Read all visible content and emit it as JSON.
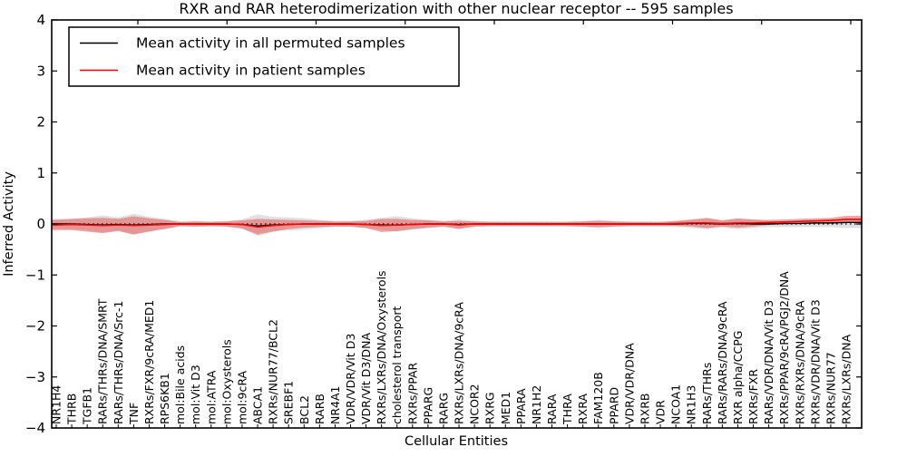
{
  "title": "RXR and RAR heterodimerization with other nuclear receptor -- 595 samples",
  "axes": {
    "xlabel": "Cellular Entities",
    "ylabel": "Inferred Activity",
    "ytick_labels": [
      "4",
      "3",
      "2",
      "1",
      "0",
      "−1",
      "−2",
      "−3",
      "−4"
    ],
    "ytick_values": [
      4,
      3,
      2,
      1,
      0,
      -1,
      -2,
      -3,
      -4
    ]
  },
  "legend": {
    "entries": [
      {
        "label": "Mean activity in all permuted samples",
        "color": "#000000"
      },
      {
        "label": "Mean activity in patient samples",
        "color": "#ff0000"
      }
    ]
  },
  "chart_data": {
    "type": "line",
    "title": "RXR and RAR heterodimerization with other nuclear receptor -- 595 samples",
    "xlabel": "Cellular Entities",
    "ylabel": "Inferred Activity",
    "ylim": [
      -4,
      4
    ],
    "grid": false,
    "legend_position": "upper left",
    "categories": [
      "NR1H4",
      "THRB",
      "TGFB1",
      "RARs/THRs/DNA/SMRT",
      "RARs/THRs/DNA/Src-1",
      "TNF",
      "RXRs/FXR/9cRA/MED1",
      "RPS6KB1",
      "mol:Bile acids",
      "mol:Vit D3",
      "mol:ATRA",
      "mol:Oxysterols",
      "mol:9cRA",
      "ABCA1",
      "RXRs/NUR77/BCL2",
      "SREBF1",
      "BCL2",
      "RARB",
      "NR4A1",
      "VDR/VDR/Vit D3",
      "VDR/Vit D3/DNA",
      "RXRs/LXRs/DNA/Oxysterols",
      "cholesterol transport",
      "RXRs/PPAR",
      "PPARG",
      "RARG",
      "RXRs/LXRs/DNA/9cRA",
      "NCOR2",
      "RXRG",
      "MED1",
      "PPARA",
      "NR1H2",
      "RARA",
      "THRA",
      "RXRA",
      "FAM120B",
      "PPARD",
      "VDR/VDR/DNA",
      "RXRB",
      "VDR",
      "NCOA1",
      "NR1H3",
      "RARs/THRs",
      "RARs/RARs/DNA/9cRA",
      "RXR alpha/CCPG",
      "RXRs/FXR",
      "RARs/VDR/DNA/Vit D3",
      "RXRs/PPAR/9cRA/PGJ2/DNA",
      "RXRs/RXRs/DNA/9cRA",
      "RXRs/VDR/DNA/Vit D3",
      "RXRs/NUR77",
      "RXRs/LXRs/DNA"
    ],
    "series": [
      {
        "name": "Mean activity in all permuted samples",
        "color": "#000000",
        "style": "solid",
        "values": [
          0,
          0,
          -0.01,
          -0.02,
          -0.01,
          -0.02,
          -0.01,
          0,
          0,
          0,
          0,
          0,
          -0.01,
          -0.04,
          -0.02,
          -0.01,
          0,
          0,
          0,
          0,
          -0.01,
          -0.02,
          -0.02,
          -0.01,
          0,
          0,
          -0.01,
          0,
          0,
          0,
          0,
          0,
          0,
          0,
          0,
          0,
          0,
          0,
          0,
          0,
          0,
          0.01,
          0.01,
          0,
          0.01,
          0,
          0,
          0.01,
          0.01,
          0.02,
          0.02,
          0.03
        ]
      },
      {
        "name": "Mean activity in patient samples",
        "color": "#ff0000",
        "style": "solid",
        "values": [
          -0.02,
          -0.01,
          -0.02,
          -0.03,
          -0.02,
          -0.03,
          -0.02,
          -0.01,
          0,
          0,
          0,
          0,
          -0.01,
          -0.06,
          -0.03,
          -0.01,
          0,
          0,
          0,
          0,
          -0.01,
          -0.03,
          -0.02,
          -0.01,
          0,
          0,
          -0.02,
          0,
          0,
          0,
          0,
          0,
          0,
          0,
          0,
          0,
          0,
          0,
          0,
          0,
          0.01,
          0.02,
          0.02,
          0.01,
          0.02,
          0.02,
          0.03,
          0.04,
          0.05,
          0.06,
          0.07,
          0.09
        ]
      }
    ],
    "reference_line": {
      "value": 0,
      "style": "dotted",
      "color": "#000000"
    },
    "bands": [
      {
        "name": "permuted samples activity range",
        "fill": "#828282",
        "opacity": 0.25,
        "upper": [
          0.1,
          0.1,
          0.13,
          0.17,
          0.13,
          0.2,
          0.14,
          0.1,
          0.05,
          0.06,
          0.05,
          0.06,
          0.09,
          0.19,
          0.14,
          0.13,
          0.11,
          0.08,
          0.06,
          0.06,
          0.08,
          0.12,
          0.15,
          0.11,
          0.08,
          0.06,
          0.09,
          0.06,
          0.05,
          0.05,
          0.05,
          0.05,
          0.05,
          0.05,
          0.06,
          0.08,
          0.06,
          0.05,
          0.05,
          0.05,
          0.05,
          0.08,
          0.1,
          0.07,
          0.1,
          0.08,
          0.06,
          0.06,
          0.06,
          0.06,
          0.06,
          0.08
        ],
        "lower": [
          -0.1,
          -0.1,
          -0.13,
          -0.17,
          -0.13,
          -0.2,
          -0.14,
          -0.1,
          -0.05,
          -0.06,
          -0.05,
          -0.06,
          -0.09,
          -0.19,
          -0.14,
          -0.13,
          -0.11,
          -0.08,
          -0.06,
          -0.06,
          -0.08,
          -0.12,
          -0.15,
          -0.11,
          -0.08,
          -0.06,
          -0.09,
          -0.06,
          -0.05,
          -0.05,
          -0.05,
          -0.05,
          -0.05,
          -0.05,
          -0.06,
          -0.08,
          -0.06,
          -0.05,
          -0.05,
          -0.05,
          -0.05,
          -0.08,
          -0.1,
          -0.07,
          -0.1,
          -0.08,
          -0.06,
          -0.06,
          -0.06,
          -0.06,
          -0.06,
          -0.08
        ]
      },
      {
        "name": "patient samples activity range",
        "fill": "#e63c3c",
        "opacity": 0.45,
        "upper": [
          0.08,
          0.1,
          0.11,
          0.12,
          0.1,
          0.15,
          0.11,
          0.08,
          0.04,
          0.05,
          0.04,
          0.05,
          0.07,
          0.1,
          0.09,
          0.08,
          0.07,
          0.06,
          0.05,
          0.05,
          0.06,
          0.1,
          0.1,
          0.08,
          0.07,
          0.05,
          0.06,
          0.05,
          0.04,
          0.04,
          0.04,
          0.04,
          0.04,
          0.04,
          0.05,
          0.06,
          0.05,
          0.04,
          0.04,
          0.04,
          0.06,
          0.09,
          0.12,
          0.07,
          0.11,
          0.09,
          0.08,
          0.09,
          0.1,
          0.11,
          0.12,
          0.16
        ],
        "lower": [
          -0.12,
          -0.12,
          -0.15,
          -0.18,
          -0.14,
          -0.21,
          -0.15,
          -0.1,
          -0.04,
          -0.05,
          -0.04,
          -0.05,
          -0.09,
          -0.22,
          -0.15,
          -0.1,
          -0.07,
          -0.06,
          -0.05,
          -0.05,
          -0.08,
          -0.16,
          -0.14,
          -0.1,
          -0.07,
          -0.05,
          -0.1,
          -0.05,
          -0.04,
          -0.04,
          -0.04,
          -0.04,
          -0.04,
          -0.04,
          -0.05,
          -0.06,
          -0.05,
          -0.04,
          -0.04,
          -0.04,
          -0.04,
          -0.05,
          -0.08,
          -0.05,
          -0.07,
          -0.05,
          -0.02,
          -0.01,
          0.0,
          0.01,
          0.02,
          0.02
        ]
      }
    ]
  }
}
